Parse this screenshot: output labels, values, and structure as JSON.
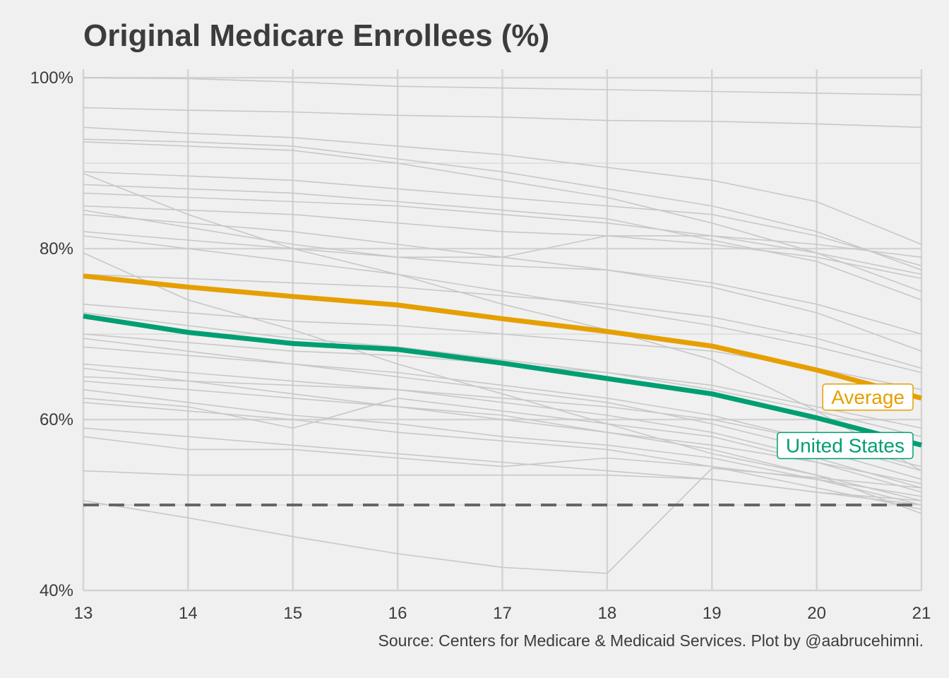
{
  "chart_data": {
    "type": "line",
    "title": "Original Medicare Enrollees (%)",
    "source": "Source: Centers for Medicare & Medicaid Services. Plot by @aabrucehimni.",
    "x": [
      13,
      14,
      15,
      16,
      17,
      18,
      19,
      20,
      21
    ],
    "x_tick_labels": [
      "13",
      "14",
      "15",
      "16",
      "17",
      "18",
      "19",
      "20",
      "21"
    ],
    "xlim": [
      13,
      21
    ],
    "ylim": [
      40,
      101
    ],
    "y_ticks": [
      40,
      60,
      80,
      100
    ],
    "y_tick_labels": [
      "40%",
      "60%",
      "80%",
      "100%"
    ],
    "grid": true,
    "reference_line": {
      "y": 50,
      "style": "dashed",
      "color": "#666666"
    },
    "colors": {
      "background": "#f0f0f0",
      "grid": "#d3d3d3",
      "background_series": "#c8c8c8",
      "text": "#3c3c3c"
    },
    "highlight_series": [
      {
        "name": "Average",
        "color": "#E69F00",
        "values": [
          76.8,
          75.5,
          74.4,
          73.4,
          71.8,
          70.3,
          68.6,
          65.8,
          62.5
        ]
      },
      {
        "name": "United States",
        "color": "#009E73",
        "values": [
          72.1,
          70.2,
          68.9,
          68.2,
          66.6,
          64.8,
          63.0,
          60.2,
          57.0
        ]
      }
    ],
    "series": [
      {
        "values": [
          100.0,
          99.9,
          99.5,
          99.0,
          98.8,
          98.6,
          98.4,
          98.2,
          98.0
        ]
      },
      {
        "values": [
          96.5,
          96.2,
          96.0,
          95.6,
          95.4,
          95.0,
          94.9,
          94.6,
          94.2
        ]
      },
      {
        "values": [
          94.2,
          93.5,
          93.0,
          92.0,
          91.0,
          89.5,
          88.0,
          85.5,
          80.5
        ]
      },
      {
        "values": [
          92.8,
          92.5,
          92.0,
          90.5,
          89.0,
          87.0,
          85.0,
          82.0,
          77.5
        ]
      },
      {
        "values": [
          92.5,
          92.0,
          91.5,
          90.0,
          88.0,
          86.0,
          83.0,
          79.5,
          75.0
        ]
      },
      {
        "values": [
          89.0,
          88.5,
          88.0,
          87.0,
          86.0,
          85.0,
          84.0,
          81.5,
          78.0
        ]
      },
      {
        "values": [
          88.8,
          84.0,
          80.0,
          77.0,
          73.5,
          70.5,
          67.0,
          61.0,
          54.0
        ]
      },
      {
        "values": [
          87.5,
          87.0,
          86.5,
          85.5,
          84.5,
          83.5,
          81.0,
          78.5,
          74.0
        ]
      },
      {
        "values": [
          86.5,
          86.0,
          85.5,
          85.0,
          84.0,
          83.0,
          81.5,
          79.5,
          77.0
        ]
      },
      {
        "values": [
          85.0,
          84.5,
          84.0,
          83.0,
          82.0,
          81.5,
          80.5,
          79.0,
          76.5
        ]
      },
      {
        "values": [
          84.5,
          82.5,
          80.5,
          79.0,
          78.0,
          77.5,
          76.0,
          73.5,
          70.0
        ]
      },
      {
        "values": [
          84.0,
          83.0,
          82.0,
          80.5,
          79.0,
          77.5,
          75.5,
          72.5,
          68.0
        ]
      },
      {
        "values": [
          82.0,
          81.0,
          80.0,
          79.0,
          79.0,
          81.5,
          81.5,
          80.5,
          79.0
        ]
      },
      {
        "values": [
          81.5,
          80.0,
          78.5,
          77.0,
          75.0,
          73.0,
          71.0,
          68.5,
          65.5
        ]
      },
      {
        "values": [
          79.5,
          74.0,
          70.5,
          66.5,
          63.0,
          59.5,
          56.0,
          53.5,
          49.0
        ]
      },
      {
        "values": [
          77.0,
          76.5,
          76.0,
          75.5,
          74.5,
          73.5,
          72.0,
          69.5,
          66.0
        ]
      },
      {
        "values": [
          73.5,
          72.5,
          71.5,
          71.0,
          70.0,
          69.0,
          68.0,
          66.0,
          63.5
        ]
      },
      {
        "values": [
          72.5,
          71.0,
          69.5,
          68.5,
          67.0,
          65.5,
          63.5,
          61.0,
          58.0
        ]
      },
      {
        "values": [
          70.0,
          69.0,
          68.0,
          67.5,
          66.5,
          65.5,
          64.0,
          61.5,
          59.0
        ]
      },
      {
        "values": [
          69.5,
          68.0,
          66.5,
          65.5,
          64.0,
          62.5,
          60.5,
          57.5,
          54.0
        ]
      },
      {
        "values": [
          68.5,
          67.5,
          66.5,
          65.0,
          63.5,
          62.0,
          59.5,
          56.5,
          53.0
        ]
      },
      {
        "values": [
          66.5,
          65.5,
          64.5,
          63.5,
          62.0,
          60.5,
          58.5,
          55.5,
          52.0
        ]
      },
      {
        "values": [
          66.0,
          64.5,
          63.0,
          61.5,
          60.5,
          58.5,
          56.5,
          53.5,
          50.5
        ]
      },
      {
        "values": [
          65.0,
          64.5,
          64.0,
          63.5,
          62.5,
          61.5,
          60.0,
          57.5,
          54.5
        ]
      },
      {
        "values": [
          64.5,
          63.5,
          62.5,
          61.5,
          60.0,
          58.5,
          57.0,
          55.0,
          52.5
        ]
      },
      {
        "values": [
          63.5,
          62.0,
          60.5,
          59.5,
          58.0,
          57.0,
          55.5,
          53.0,
          50.0
        ]
      },
      {
        "values": [
          62.5,
          61.5,
          59.0,
          62.5,
          61.0,
          59.5,
          58.0,
          55.0,
          51.5
        ]
      },
      {
        "values": [
          62.0,
          61.0,
          60.0,
          58.5,
          57.5,
          56.5,
          54.5,
          52.0,
          49.5
        ]
      },
      {
        "values": [
          59.0,
          58.0,
          57.0,
          56.0,
          55.0,
          54.0,
          53.0,
          51.5,
          50.0
        ]
      },
      {
        "values": [
          58.0,
          56.5,
          56.5,
          55.5,
          54.5,
          55.5,
          54.5,
          53.0,
          51.0
        ]
      },
      {
        "values": [
          54.0,
          53.5,
          53.5,
          53.5,
          53.5,
          53.5,
          53.0,
          51.5,
          50.5
        ]
      },
      {
        "values": [
          50.5,
          48.5,
          46.3,
          44.3,
          42.7,
          42.0,
          54.3,
          53.2,
          52.0
        ]
      }
    ]
  }
}
